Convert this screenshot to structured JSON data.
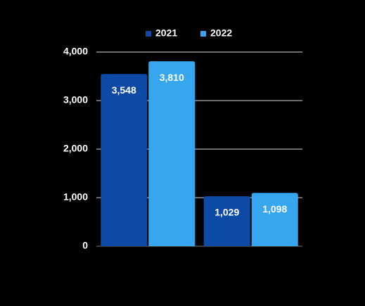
{
  "chart_data": {
    "type": "bar",
    "categories": [
      null,
      null
    ],
    "series": [
      {
        "name": "2021",
        "color": "#0d4aa6",
        "values": [
          3548,
          1029
        ],
        "value_labels": [
          "3,548",
          "1,029"
        ]
      },
      {
        "name": "2022",
        "color": "#36a6ee",
        "values": [
          3810,
          1098
        ],
        "value_labels": [
          "3,810",
          "1,098"
        ]
      }
    ],
    "ylim": [
      0,
      4000
    ],
    "yticks": [
      0,
      {
        "value": 1000,
        "label": "1,000"
      },
      {
        "value": 2000,
        "label": "2,000"
      },
      {
        "value": 3000,
        "label": "3,000"
      },
      {
        "value": 4000,
        "label": "4,000"
      }
    ],
    "grid": true,
    "legend": "top"
  }
}
